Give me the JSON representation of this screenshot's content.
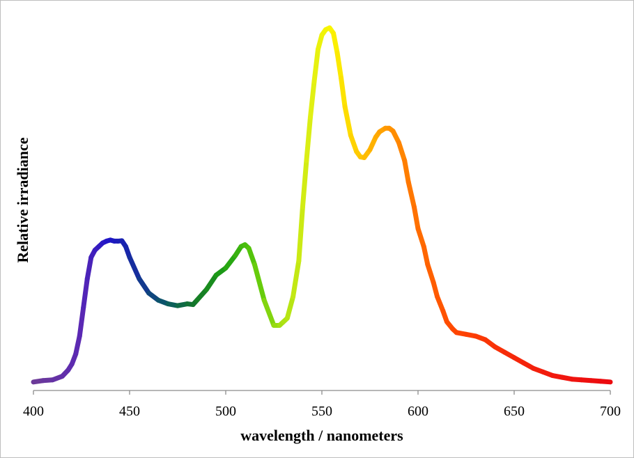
{
  "chart_data": {
    "type": "line",
    "title": "",
    "xlabel": "wavelength / nanometers",
    "ylabel": "Relative irradiance",
    "xlim": [
      400,
      700
    ],
    "ylim": [
      0,
      1.0
    ],
    "x_ticks": [
      400,
      450,
      500,
      550,
      600,
      650,
      700
    ],
    "x_tick_labels": [
      "400",
      "450",
      "500",
      "550",
      "600",
      "650",
      "700"
    ],
    "y_tick_labels": [],
    "grid": false,
    "legend": "none",
    "line_coloring": "visible-spectrum gradient by wavelength (violet to red)",
    "series": [
      {
        "x": [
          400,
          405,
          410,
          415,
          418,
          420,
          422,
          424,
          426,
          428,
          430,
          432,
          434,
          436,
          438,
          440,
          442,
          444,
          446,
          448,
          450,
          455,
          460,
          465,
          470,
          475,
          480,
          483,
          485,
          490,
          495,
          500,
          505,
          508,
          510,
          512,
          515,
          520,
          525,
          528,
          530,
          532,
          535,
          538,
          540,
          542,
          544,
          546,
          548,
          550,
          552,
          554,
          556,
          558,
          560,
          562,
          565,
          568,
          570,
          572,
          575,
          578,
          580,
          583,
          585,
          587,
          590,
          593,
          595,
          598,
          600,
          603,
          605,
          608,
          610,
          613,
          615,
          618,
          620,
          625,
          630,
          635,
          640,
          645,
          650,
          655,
          660,
          665,
          670,
          675,
          680,
          685,
          690,
          695,
          700
        ],
        "values": [
          0.012,
          0.016,
          0.018,
          0.028,
          0.045,
          0.062,
          0.09,
          0.14,
          0.22,
          0.3,
          0.36,
          0.38,
          0.39,
          0.4,
          0.405,
          0.408,
          0.405,
          0.405,
          0.406,
          0.39,
          0.36,
          0.3,
          0.26,
          0.24,
          0.23,
          0.225,
          0.23,
          0.228,
          0.24,
          0.27,
          0.31,
          0.33,
          0.365,
          0.39,
          0.395,
          0.385,
          0.34,
          0.24,
          0.17,
          0.17,
          0.18,
          0.19,
          0.25,
          0.35,
          0.5,
          0.63,
          0.75,
          0.85,
          0.94,
          0.98,
          0.995,
          1.0,
          0.985,
          0.93,
          0.86,
          0.78,
          0.7,
          0.655,
          0.64,
          0.638,
          0.66,
          0.695,
          0.71,
          0.72,
          0.72,
          0.712,
          0.68,
          0.63,
          0.57,
          0.5,
          0.44,
          0.39,
          0.34,
          0.29,
          0.25,
          0.21,
          0.18,
          0.16,
          0.15,
          0.145,
          0.14,
          0.13,
          0.11,
          0.095,
          0.08,
          0.065,
          0.05,
          0.04,
          0.03,
          0.025,
          0.02,
          0.018,
          0.016,
          0.014,
          0.012
        ]
      }
    ]
  }
}
